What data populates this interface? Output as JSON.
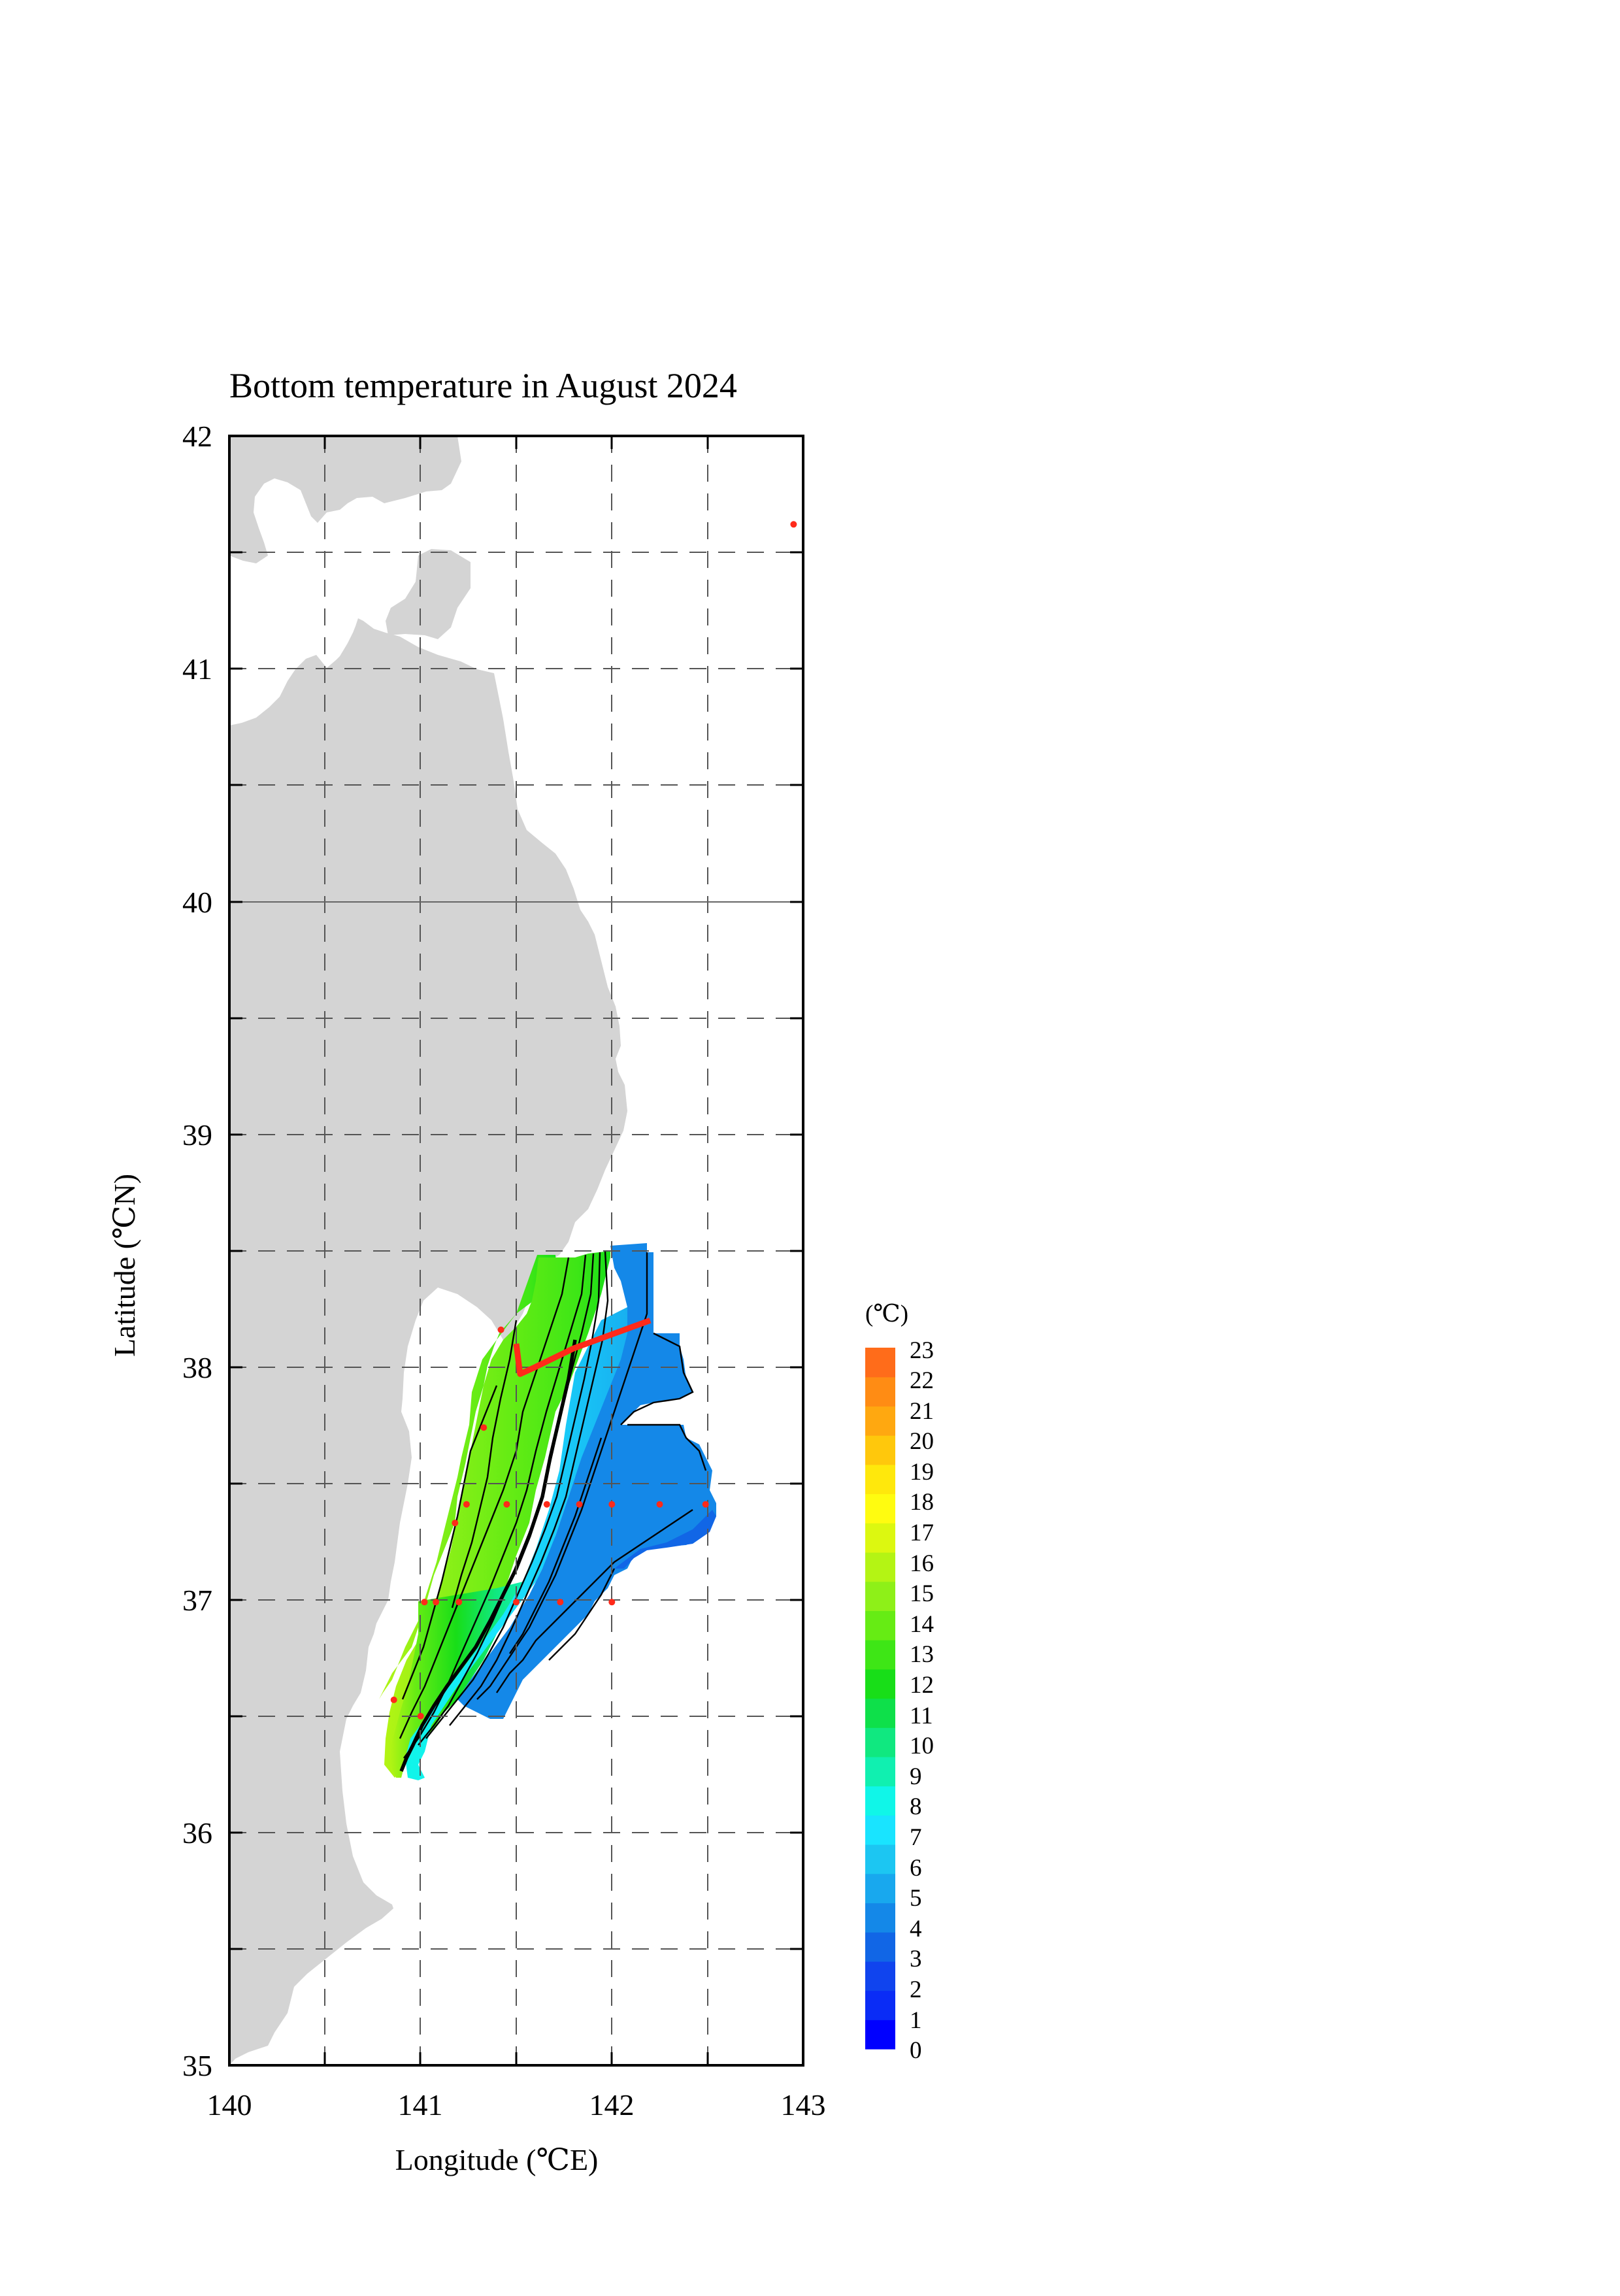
{
  "title": "Bottom temperature in August 2024",
  "x_axis": {
    "label": "Longitude (℃E)",
    "ticks": [
      "140",
      "141",
      "142",
      "143"
    ],
    "range": [
      140,
      143
    ]
  },
  "y_axis": {
    "label": "Latitude (℃N)",
    "ticks": [
      "35",
      "36",
      "37",
      "38",
      "39",
      "40",
      "41",
      "42"
    ],
    "range": [
      35,
      42
    ]
  },
  "colorbar": {
    "unit": "(℃)",
    "labels": [
      "23",
      "22",
      "21",
      "20",
      "19",
      "18",
      "17",
      "16",
      "15",
      "14",
      "13",
      "12",
      "11",
      "10",
      "9",
      "8",
      "7",
      "6",
      "5",
      "4",
      "3",
      "2",
      "1",
      "0"
    ],
    "min": 0,
    "max": 23,
    "colors": [
      "#0000ff",
      "#0a2cf6",
      "#1044ee",
      "#1166e6",
      "#1488e8",
      "#18a8ee",
      "#1cc6f2",
      "#19e4ff",
      "#10f6e8",
      "#10f0b0",
      "#10e880",
      "#0ee04a",
      "#18de18",
      "#3ee616",
      "#66ec14",
      "#8ef018",
      "#b4f414",
      "#dcf810",
      "#fffc10",
      "#ffe80c",
      "#ffc80c",
      "#ffa810",
      "#ff8c14",
      "#ff6c1a"
    ]
  },
  "colors": {
    "land": "#d4d4d4",
    "station": "#ff2a1a",
    "track": "#ff2a1a",
    "contour": "#000000",
    "grid": "#555555"
  },
  "stations": [
    {
      "lon": 142.95,
      "lat": 41.62
    },
    {
      "lon": 141.42,
      "lat": 38.16
    },
    {
      "lon": 141.33,
      "lat": 37.74
    },
    {
      "lon": 141.18,
      "lat": 37.33
    },
    {
      "lon": 141.24,
      "lat": 37.41
    },
    {
      "lon": 141.45,
      "lat": 37.41
    },
    {
      "lon": 141.66,
      "lat": 37.41
    },
    {
      "lon": 141.83,
      "lat": 37.41
    },
    {
      "lon": 142.0,
      "lat": 37.41
    },
    {
      "lon": 142.25,
      "lat": 37.41
    },
    {
      "lon": 142.49,
      "lat": 37.41
    },
    {
      "lon": 141.02,
      "lat": 36.99
    },
    {
      "lon": 141.08,
      "lat": 36.99
    },
    {
      "lon": 141.2,
      "lat": 36.99
    },
    {
      "lon": 141.5,
      "lat": 36.99
    },
    {
      "lon": 141.73,
      "lat": 36.99
    },
    {
      "lon": 142.0,
      "lat": 36.99
    },
    {
      "lon": 140.86,
      "lat": 36.57
    },
    {
      "lon": 141.0,
      "lat": 36.5
    }
  ],
  "track": [
    {
      "lon": 141.5,
      "lat": 38.1
    },
    {
      "lon": 141.52,
      "lat": 37.97
    },
    {
      "lon": 141.6,
      "lat": 38.0
    },
    {
      "lon": 141.8,
      "lat": 38.08
    },
    {
      "lon": 142.0,
      "lat": 38.14
    },
    {
      "lon": 142.2,
      "lat": 38.2
    }
  ]
}
